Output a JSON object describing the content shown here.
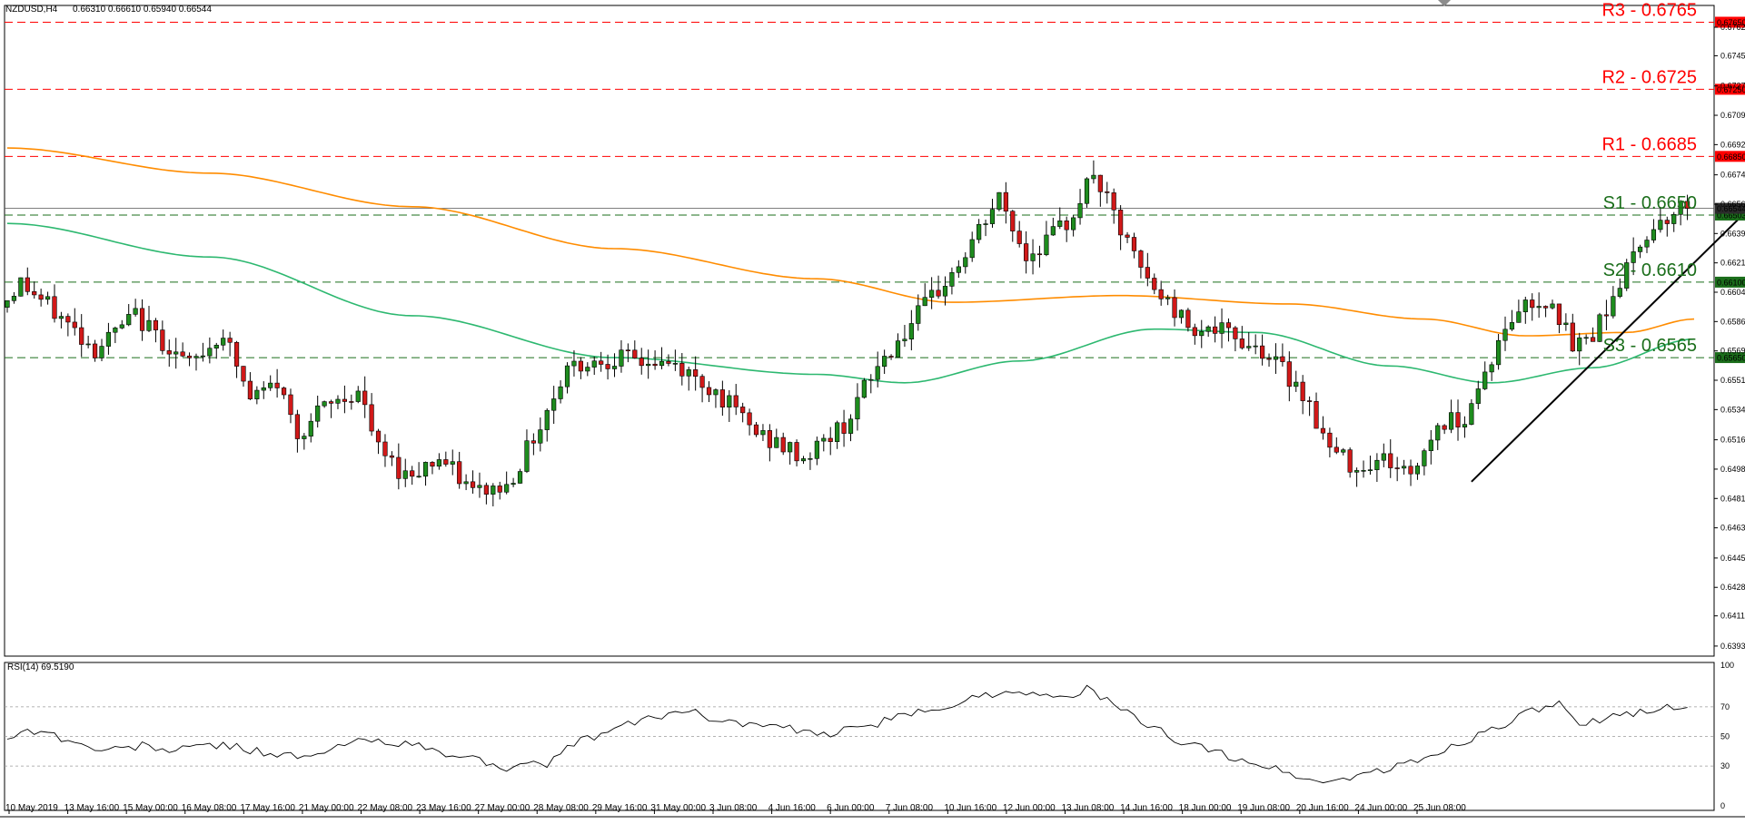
{
  "header": {
    "symbol": "NZDUSD,H4",
    "ohlc": "0.66310 0.66610 0.65940 0.66544"
  },
  "chart_data": [
    {
      "type": "candlestick",
      "title": "NZDUSD,H4",
      "ylim": [
        0.6387,
        0.6775
      ],
      "y_ticks": [
        "0.67620",
        "0.67450",
        "0.67270",
        "0.67095",
        "0.66920",
        "0.66740",
        "0.66565",
        "0.66390",
        "0.66215",
        "0.66040",
        "0.65865",
        "0.65690",
        "0.65515",
        "0.65340",
        "0.65160",
        "0.64985",
        "0.64810",
        "0.64635",
        "0.64455",
        "0.64280",
        "0.64110",
        "0.63930"
      ],
      "x_ticks": [
        "10 May 2019",
        "13 May 16:00",
        "15 May 00:00",
        "16 May 08:00",
        "17 May 16:00",
        "21 May 00:00",
        "22 May 08:00",
        "23 May 16:00",
        "27 May 00:00",
        "28 May 08:00",
        "29 May 16:00",
        "31 May 00:00",
        "3 Jun 08:00",
        "4 Jun 16:00",
        "6 Jun 00:00",
        "7 Jun 08:00",
        "10 Jun 16:00",
        "12 Jun 00:00",
        "13 Jun 08:00",
        "14 Jun 16:00",
        "18 Jun 00:00",
        "19 Jun 08:00",
        "20 Jun 16:00",
        "24 Jun 00:00",
        "25 Jun 08:00"
      ],
      "candle_count": 250,
      "price_path": [
        [
          0,
          0.6595
        ],
        [
          3,
          0.661
        ],
        [
          10,
          0.6585
        ],
        [
          14,
          0.657
        ],
        [
          20,
          0.659
        ],
        [
          28,
          0.656
        ],
        [
          33,
          0.658
        ],
        [
          37,
          0.654
        ],
        [
          41,
          0.655
        ],
        [
          44,
          0.652
        ],
        [
          48,
          0.6535
        ],
        [
          53,
          0.6545
        ],
        [
          56,
          0.651
        ],
        [
          60,
          0.6495
        ],
        [
          65,
          0.6505
        ],
        [
          70,
          0.6485
        ],
        [
          75,
          0.6488
        ],
        [
          80,
          0.6525
        ],
        [
          84,
          0.656
        ],
        [
          91,
          0.6565
        ],
        [
          100,
          0.656
        ],
        [
          106,
          0.6545
        ],
        [
          112,
          0.652
        ],
        [
          119,
          0.6505
        ],
        [
          125,
          0.6525
        ],
        [
          130,
          0.656
        ],
        [
          137,
          0.6595
        ],
        [
          142,
          0.662
        ],
        [
          148,
          0.666
        ],
        [
          152,
          0.6625
        ],
        [
          158,
          0.6645
        ],
        [
          162,
          0.6675
        ],
        [
          166,
          0.664
        ],
        [
          170,
          0.661
        ],
        [
          176,
          0.6585
        ],
        [
          181,
          0.658
        ],
        [
          187,
          0.657
        ],
        [
          193,
          0.6545
        ],
        [
          197,
          0.651
        ],
        [
          201,
          0.65
        ],
        [
          205,
          0.6505
        ],
        [
          209,
          0.6495
        ],
        [
          213,
          0.6525
        ],
        [
          217,
          0.653
        ],
        [
          221,
          0.6565
        ],
        [
          225,
          0.6595
        ],
        [
          230,
          0.66
        ],
        [
          233,
          0.657
        ],
        [
          236,
          0.658
        ],
        [
          240,
          0.661
        ],
        [
          244,
          0.664
        ],
        [
          247,
          0.665
        ],
        [
          250,
          0.6655
        ]
      ],
      "series": [
        {
          "name": "",
          "color": "#ff8c00",
          "points": [
            [
              0,
              0.669
            ],
            [
              30,
              0.6675
            ],
            [
              60,
              0.6655
            ],
            [
              90,
              0.663
            ],
            [
              120,
              0.6612
            ],
            [
              140,
              0.6598
            ],
            [
              165,
              0.6602
            ],
            [
              190,
              0.6597
            ],
            [
              210,
              0.6588
            ],
            [
              225,
              0.6578
            ],
            [
              240,
              0.658
            ],
            [
              250,
              0.6588
            ]
          ]
        },
        {
          "name": "",
          "color": "#2db870",
          "points": [
            [
              0,
              0.6645
            ],
            [
              30,
              0.6625
            ],
            [
              60,
              0.659
            ],
            [
              90,
              0.6565
            ],
            [
              120,
              0.6555
            ],
            [
              133,
              0.655
            ],
            [
              150,
              0.6563
            ],
            [
              170,
              0.6582
            ],
            [
              185,
              0.658
            ],
            [
              205,
              0.656
            ],
            [
              220,
              0.655
            ],
            [
              235,
              0.6559
            ],
            [
              250,
              0.6576
            ]
          ]
        }
      ],
      "levels": [
        {
          "label": "R3 - 0.6765",
          "price": 0.6765,
          "color": "#ff0000",
          "tag": "0.67650"
        },
        {
          "label": "R2 - 0.6725",
          "price": 0.6725,
          "color": "#ff0000",
          "tag": "0.67250"
        },
        {
          "label": "R1 - 0.6685",
          "price": 0.6685,
          "color": "#ff0000",
          "tag": "0.66850"
        },
        {
          "label": "S1 - 0.6650",
          "price": 0.665,
          "color": "#1b6e1b",
          "tag": "0.66503"
        },
        {
          "label": "S2 - 0.6610",
          "price": 0.661,
          "color": "#1b6e1b",
          "tag": "0.66100"
        },
        {
          "label": "S3 - 0.6565",
          "price": 0.6565,
          "color": "#1b6e1b",
          "tag": "0.65650"
        }
      ],
      "last_price": {
        "price": 0.6654,
        "tag": "0.66544"
      },
      "trendline": {
        "from": [
          217,
          0.6491
        ],
        "to": [
          263,
          0.6673
        ]
      }
    },
    {
      "type": "line",
      "title": "RSI(14) 69.5190",
      "ylim": [
        0,
        100
      ],
      "y_ticks": [
        "100",
        "70",
        "50",
        "30",
        "0"
      ],
      "levels": [
        70,
        50,
        30
      ],
      "values": [
        [
          0,
          50
        ],
        [
          5,
          55
        ],
        [
          10,
          45
        ],
        [
          15,
          40
        ],
        [
          20,
          44
        ],
        [
          25,
          40
        ],
        [
          30,
          45
        ],
        [
          35,
          42
        ],
        [
          40,
          38
        ],
        [
          45,
          35
        ],
        [
          50,
          45
        ],
        [
          55,
          48
        ],
        [
          60,
          44
        ],
        [
          65,
          38
        ],
        [
          70,
          34
        ],
        [
          75,
          28
        ],
        [
          80,
          32
        ],
        [
          84,
          45
        ],
        [
          90,
          55
        ],
        [
          95,
          62
        ],
        [
          100,
          68
        ],
        [
          105,
          62
        ],
        [
          110,
          58
        ],
        [
          115,
          56
        ],
        [
          120,
          50
        ],
        [
          125,
          55
        ],
        [
          130,
          60
        ],
        [
          135,
          66
        ],
        [
          140,
          72
        ],
        [
          145,
          78
        ],
        [
          150,
          82
        ],
        [
          155,
          75
        ],
        [
          160,
          82
        ],
        [
          165,
          68
        ],
        [
          170,
          55
        ],
        [
          175,
          45
        ],
        [
          180,
          38
        ],
        [
          185,
          32
        ],
        [
          190,
          25
        ],
        [
          195,
          18
        ],
        [
          200,
          24
        ],
        [
          205,
          28
        ],
        [
          210,
          35
        ],
        [
          215,
          45
        ],
        [
          220,
          55
        ],
        [
          225,
          65
        ],
        [
          230,
          72
        ],
        [
          233,
          55
        ],
        [
          236,
          62
        ],
        [
          240,
          65
        ],
        [
          245,
          70
        ],
        [
          250,
          69.5
        ]
      ]
    }
  ]
}
